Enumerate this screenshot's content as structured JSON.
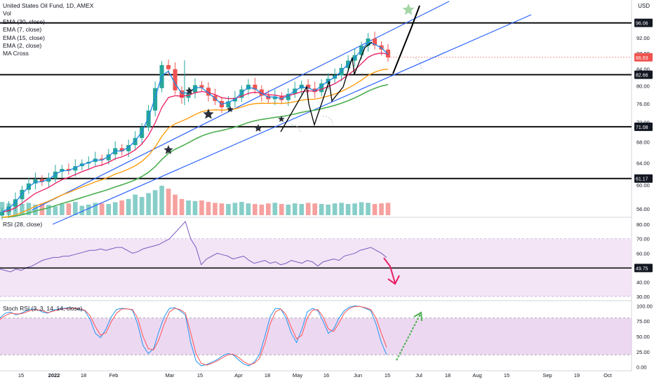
{
  "legend": {
    "symbol": "United States Oil Fund, 1D, AMEX",
    "vol": "Vol",
    "ema30": "EMA (30, close)",
    "ema7": "EMA (7, close)",
    "ema15": "EMA (15, close)",
    "ema2": "EMA (2, close)",
    "macross": "MA Cross"
  },
  "currency": "USD",
  "rsi_label": "RSI (28, close)",
  "stoch_label": "Stoch RSI (3, 3, 14, 14, close)",
  "colors": {
    "up": "#26a69a",
    "down": "#ef5350",
    "channel": "#2962ff",
    "ema30": "#4caf50",
    "ema7": "#e91e63",
    "ema15": "#ff9800",
    "ema2": "#1e88e5",
    "rsi_line": "#7e57c2",
    "rsi_band": "#f3e5f5",
    "stoch_k": "#2196f3",
    "stoch_d": "#ff5252",
    "stoch_band": "#e1bee7",
    "arrow_pink": "#e91e63",
    "arrow_green": "#4caf50",
    "label_bg": "#131722",
    "last_price_bg": "#ef5350"
  },
  "chart_data": [
    {
      "type": "candlestick",
      "title": "United States Oil Fund, 1D, AMEX",
      "x_tick_labels": [
        "15",
        "2022",
        "18",
        "Feb",
        "Mar",
        "15",
        "Apr",
        "18",
        "May",
        "16",
        "Jun",
        "15",
        "Jul",
        "18",
        "Aug",
        "15",
        "Sep",
        "19",
        "Oct"
      ],
      "y_tick_labels": [
        "56.00",
        "60.00",
        "64.00",
        "68.00",
        "72.00",
        "76.00",
        "80.00",
        "84.00",
        "88.00",
        "92.00",
        "96.00"
      ],
      "ylim": [
        55,
        101
      ],
      "scale": "log",
      "horizontal_levels": [
        96.06,
        82.66,
        71.08,
        61.17
      ],
      "last_price": 86.93,
      "approx_closes": [
        55.5,
        56.4,
        57.6,
        59.2,
        60.3,
        61.0,
        60.6,
        61.2,
        62.4,
        62.9,
        62.6,
        63.4,
        63.9,
        64.2,
        64.8,
        64.5,
        65.6,
        66.8,
        66.2,
        67.4,
        68.8,
        71.0,
        74.5,
        79.5,
        85.0,
        84.0,
        79.0,
        77.3,
        78.5,
        80.2,
        79.6,
        77.8,
        76.6,
        75.2,
        76.5,
        77.3,
        79.2,
        80.3,
        79.2,
        77.8,
        77.0,
        77.6,
        76.8,
        78.2,
        79.4,
        80.3,
        79.4,
        78.6,
        80.6,
        81.7,
        82.5,
        84.3,
        86.1,
        87.5,
        89.9,
        91.8,
        90.0,
        88.9,
        86.9
      ],
      "volume_relative": [
        0.45,
        0.4,
        0.5,
        0.38,
        0.42,
        0.36,
        0.4,
        0.35,
        0.3,
        0.38,
        0.4,
        0.45,
        0.32,
        0.36,
        0.42,
        0.4,
        0.38,
        0.44,
        0.5,
        0.55,
        0.7,
        0.62,
        0.75,
        0.85,
        1.0,
        0.9,
        0.7,
        0.55,
        0.5,
        0.48,
        0.5,
        0.45,
        0.42,
        0.4,
        0.38,
        0.42,
        0.45,
        0.4,
        0.38,
        0.36,
        0.4,
        0.42,
        0.38,
        0.36,
        0.4,
        0.38,
        0.42,
        0.4,
        0.38,
        0.36,
        0.4,
        0.42,
        0.38,
        0.4,
        0.44,
        0.42,
        0.38,
        0.4,
        0.42
      ]
    },
    {
      "type": "line",
      "title": "RSI (28, close)",
      "y_tick_labels": [
        "30.00",
        "40.00",
        "50.00",
        "60.00",
        "70.00",
        "80.00"
      ],
      "ylim": [
        28,
        83
      ],
      "band": [
        30,
        70
      ],
      "level_label": 49.75,
      "values": [
        49,
        48,
        47,
        49,
        48,
        50,
        51,
        53,
        55,
        56,
        57,
        57,
        58,
        58,
        59,
        60,
        61,
        62,
        62,
        63,
        62,
        63,
        64,
        64,
        62,
        60,
        61,
        63,
        64,
        65,
        66,
        68,
        70,
        74,
        78,
        82,
        70,
        64,
        52,
        56,
        58,
        60,
        59,
        58,
        56,
        57,
        58,
        55,
        53,
        54,
        55,
        53,
        54,
        52,
        53,
        55,
        54,
        53,
        55,
        54,
        51,
        54,
        55,
        56,
        55,
        58,
        59,
        60,
        62,
        63,
        64,
        62,
        60,
        57
      ]
    },
    {
      "type": "line",
      "title": "Stoch RSI (3, 3, 14, 14, close)",
      "y_tick_labels": [
        "0.00",
        "25.00",
        "50.00",
        "75.00",
        "100.00"
      ],
      "ylim": [
        -5,
        105
      ],
      "band": [
        20,
        80
      ],
      "series": [
        {
          "values": [
            80,
            88,
            90,
            85,
            88,
            92,
            95,
            94,
            90,
            88,
            93,
            95,
            96,
            97,
            96,
            94,
            92,
            78,
            55,
            48,
            62,
            82,
            94,
            96,
            95,
            93,
            70,
            35,
            22,
            30,
            58,
            82,
            96,
            97,
            92,
            85,
            40,
            10,
            2,
            4,
            8,
            12,
            18,
            22,
            20,
            12,
            5,
            2,
            8,
            20,
            50,
            82,
            96,
            95,
            80,
            55,
            40,
            62,
            90,
            96,
            92,
            75,
            55,
            62,
            80,
            92,
            98,
            100,
            99,
            96,
            92,
            70,
            40,
            20
          ]
        },
        {
          "values": [
            78,
            84,
            88,
            87,
            87,
            90,
            93,
            94,
            92,
            89,
            91,
            94,
            95,
            96,
            96,
            95,
            93,
            84,
            66,
            52,
            56,
            74,
            88,
            95,
            95,
            94,
            80,
            50,
            30,
            28,
            45,
            70,
            90,
            96,
            94,
            88,
            56,
            22,
            6,
            3,
            6,
            10,
            15,
            20,
            21,
            16,
            9,
            4,
            6,
            14,
            38,
            70,
            90,
            95,
            86,
            65,
            46,
            52,
            80,
            93,
            94,
            82,
            62,
            58,
            72,
            88,
            96,
            99,
            99,
            97,
            94,
            80,
            55,
            32
          ]
        }
      ]
    }
  ]
}
